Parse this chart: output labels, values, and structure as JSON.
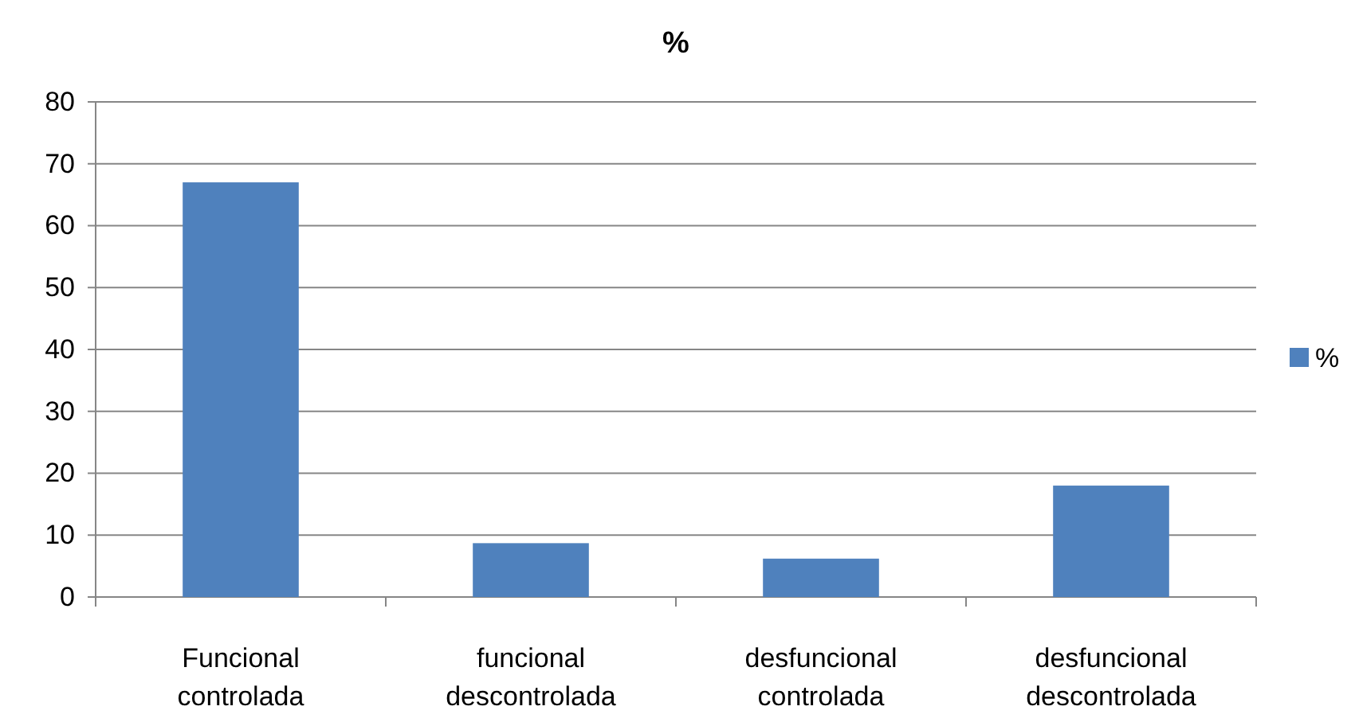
{
  "chart_data": {
    "type": "bar",
    "title": "%",
    "categories": [
      "Funcional controlada",
      "funcional descontrolada",
      "desfuncional controlada",
      "desfuncional descontrolada"
    ],
    "series": [
      {
        "name": "%",
        "color": "#4f81bd",
        "values": [
          67,
          8.7,
          6.2,
          18
        ]
      }
    ],
    "ylim": [
      0,
      80
    ],
    "yticks": [
      0,
      10,
      20,
      30,
      40,
      50,
      60,
      70,
      80
    ],
    "grid": "y",
    "legend": "right"
  }
}
